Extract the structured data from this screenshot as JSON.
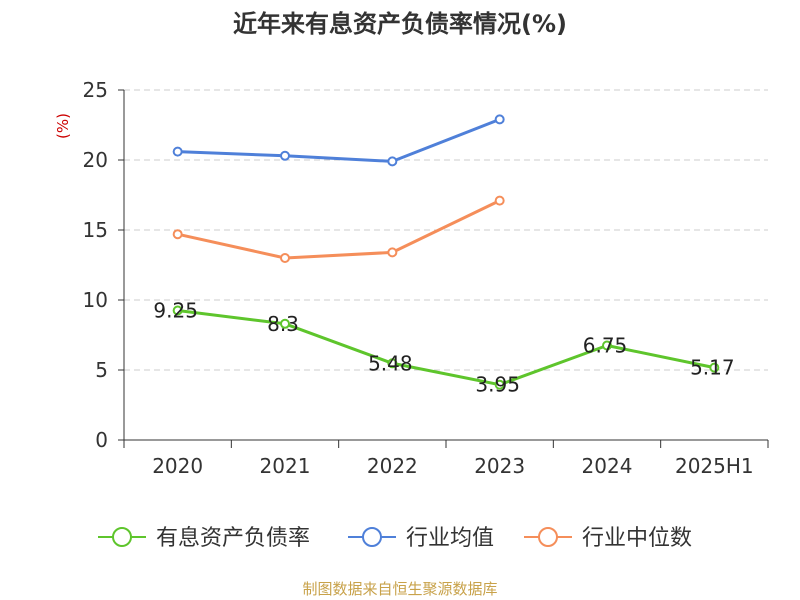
{
  "title": "近年来有息资产负债率情况(%)",
  "source": "制图数据来自恒生聚源数据库",
  "chart_data": {
    "type": "line",
    "title": "近年来有息资产负债率情况(%)",
    "ylabel": "(%)",
    "categories": [
      "2020",
      "2021",
      "2022",
      "2023",
      "2024",
      "2025H1"
    ],
    "ylim": [
      0,
      25
    ],
    "yticks": [
      0,
      5,
      10,
      15,
      20,
      25
    ],
    "grid": true,
    "legend_position": "bottom",
    "series": [
      {
        "name": "有息资产负债率",
        "color": "#5ec52c",
        "values": [
          9.25,
          8.3,
          5.48,
          3.95,
          6.75,
          5.17
        ],
        "labels": [
          "9.25",
          "8.3",
          "5.48",
          "3.95",
          "6.75",
          "5.17"
        ]
      },
      {
        "name": "行业均值",
        "color": "#4f80d9",
        "values": [
          20.6,
          20.3,
          19.9,
          22.9,
          null,
          null
        ]
      },
      {
        "name": "行业中位数",
        "color": "#f58e5a",
        "values": [
          14.7,
          13.0,
          13.4,
          17.1,
          null,
          null
        ]
      }
    ]
  }
}
